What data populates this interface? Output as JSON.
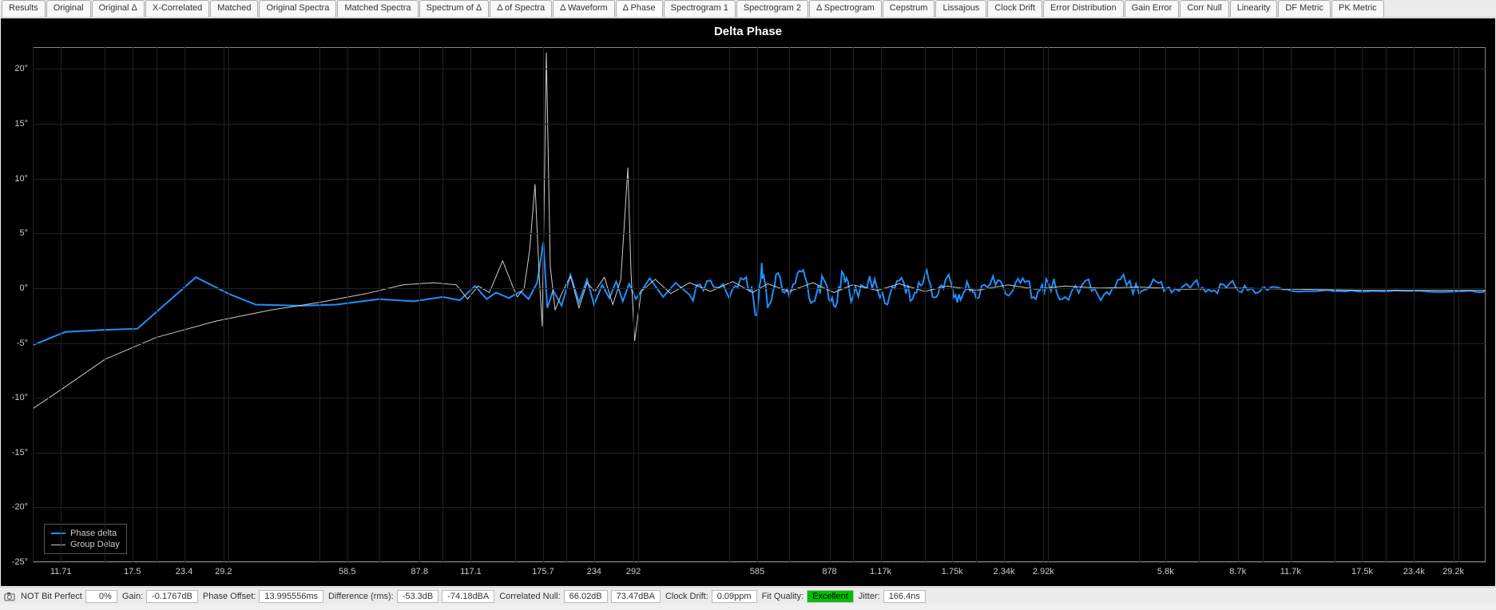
{
  "tabs": [
    "Results",
    "Original",
    "Original Δ",
    "X-Correlated",
    "Matched",
    "Original Spectra",
    "Matched Spectra",
    "Spectrum of Δ",
    "Δ of Spectra",
    "Δ Waveform",
    "Δ Phase",
    "Spectrogram 1",
    "Spectrogram 2",
    "Δ Spectrogram",
    "Cepstrum",
    "Lissajous",
    "Clock Drift",
    "Error Distribution",
    "Gain Error",
    "Corr Null",
    "Linearity",
    "DF Metric",
    "PK Metric"
  ],
  "active_tab_index": 10,
  "chart": {
    "type": "line",
    "title": "Delta Phase",
    "background_color": "#000000",
    "grid_color": "#222222",
    "border_color": "#888888",
    "text_color": "#cccccc",
    "title_color": "#ffffff",
    "title_fontsize": 15,
    "label_fontsize": 11,
    "y_axis": {
      "min": -25,
      "max": 22,
      "unit": "°",
      "ticks": [
        -25,
        -20,
        -15,
        -10,
        -5,
        0,
        5,
        10,
        15,
        20
      ]
    },
    "x_axis": {
      "scale": "log",
      "ticks": [
        11.71,
        17.5,
        23.4,
        29.2,
        58.5,
        87.8,
        117.1,
        175.7,
        234,
        292,
        585,
        878,
        "1.17k",
        "1.75k",
        "2.34k",
        "2.92k",
        "5.8k",
        "8.7k",
        "11.7k",
        "17.5k",
        "23.4k",
        "29.2k"
      ],
      "tick_values": [
        11.71,
        17.5,
        23.4,
        29.2,
        58.5,
        87.8,
        117.1,
        175.7,
        234,
        292,
        585,
        878,
        1170,
        1750,
        2340,
        2920,
        5800,
        8700,
        11700,
        17500,
        23400,
        29200
      ],
      "min": 10,
      "max": 35000
    },
    "series": [
      {
        "name": "Phase delta",
        "color": "#1e90ff",
        "line_width": 2,
        "points": [
          [
            10,
            -5.2
          ],
          [
            12,
            -4.0
          ],
          [
            15,
            -3.8
          ],
          [
            18,
            -3.7
          ],
          [
            25,
            1.0
          ],
          [
            30,
            -0.5
          ],
          [
            35,
            -1.5
          ],
          [
            45,
            -1.6
          ],
          [
            55,
            -1.5
          ],
          [
            70,
            -1.0
          ],
          [
            85,
            -1.2
          ],
          [
            100,
            -0.8
          ],
          [
            110,
            -1.1
          ],
          [
            120,
            0.2
          ],
          [
            128,
            -1.0
          ],
          [
            135,
            -0.4
          ],
          [
            145,
            -0.9
          ],
          [
            155,
            -0.3
          ],
          [
            162,
            -1.0
          ],
          [
            170,
            0.5
          ],
          [
            176,
            4.2
          ],
          [
            180,
            -1.8
          ],
          [
            186,
            -0.2
          ],
          [
            195,
            -1.6
          ],
          [
            205,
            1.2
          ],
          [
            215,
            -1.3
          ],
          [
            225,
            0.8
          ],
          [
            234,
            -1.5
          ],
          [
            245,
            0.3
          ],
          [
            255,
            -0.9
          ],
          [
            265,
            0.6
          ],
          [
            275,
            -1.2
          ],
          [
            285,
            0.4
          ],
          [
            296,
            -1.0
          ],
          [
            320,
            0.9
          ],
          [
            345,
            -0.8
          ],
          [
            370,
            0.5
          ],
          [
            400,
            -0.6
          ],
          [
            450,
            0.7
          ],
          [
            500,
            -0.9
          ],
          [
            550,
            1.0
          ],
          [
            585,
            -2.5
          ],
          [
            600,
            2.3
          ],
          [
            620,
            -1.8
          ],
          [
            650,
            1.2
          ],
          [
            700,
            -0.7
          ],
          [
            750,
            1.5
          ],
          [
            800,
            -1.2
          ],
          [
            850,
            0.8
          ],
          [
            900,
            -1.6
          ],
          [
            950,
            1.3
          ],
          [
            1000,
            -0.9
          ],
          [
            1100,
            1.1
          ],
          [
            1200,
            -1.4
          ],
          [
            1300,
            0.7
          ],
          [
            1400,
            -1.0
          ],
          [
            1500,
            1.2
          ],
          [
            1600,
            -0.8
          ],
          [
            1700,
            1.0
          ],
          [
            1800,
            -1.3
          ],
          [
            1900,
            0.6
          ],
          [
            2000,
            -0.9
          ],
          [
            2200,
            1.1
          ],
          [
            2400,
            -0.7
          ],
          [
            2600,
            0.9
          ],
          [
            2800,
            -1.0
          ],
          [
            3000,
            0.5
          ],
          [
            3300,
            -0.8
          ],
          [
            3700,
            0.7
          ],
          [
            4100,
            -0.6
          ],
          [
            4500,
            0.8
          ],
          [
            5000,
            -0.5
          ],
          [
            5500,
            0.6
          ],
          [
            6000,
            -0.4
          ],
          [
            6800,
            0.5
          ],
          [
            7500,
            -0.3
          ],
          [
            8300,
            0.4
          ],
          [
            9200,
            -0.2
          ],
          [
            10500,
            0.1
          ],
          [
            12000,
            -0.3
          ],
          [
            14000,
            -0.2
          ],
          [
            17000,
            -0.3
          ],
          [
            22000,
            -0.25
          ],
          [
            30000,
            -0.3
          ],
          [
            35000,
            -0.3
          ]
        ]
      },
      {
        "name": "Group Delay",
        "color": "#cccccc",
        "line_width": 1,
        "points": [
          [
            10,
            -11.0
          ],
          [
            12,
            -9.0
          ],
          [
            15,
            -6.5
          ],
          [
            20,
            -4.5
          ],
          [
            28,
            -3.0
          ],
          [
            38,
            -2.0
          ],
          [
            50,
            -1.3
          ],
          [
            65,
            -0.5
          ],
          [
            80,
            0.3
          ],
          [
            95,
            0.5
          ],
          [
            108,
            0.3
          ],
          [
            115,
            -1.0
          ],
          [
            122,
            0.2
          ],
          [
            130,
            -0.4
          ],
          [
            140,
            2.5
          ],
          [
            148,
            0.2
          ],
          [
            152,
            -0.8
          ],
          [
            158,
            0.0
          ],
          [
            163,
            3.5
          ],
          [
            168,
            9.5
          ],
          [
            172,
            1.0
          ],
          [
            175,
            -3.5
          ],
          [
            179,
            21.5
          ],
          [
            183,
            2.0
          ],
          [
            188,
            -2.0
          ],
          [
            195,
            -0.5
          ],
          [
            205,
            1.1
          ],
          [
            215,
            -1.8
          ],
          [
            225,
            0.5
          ],
          [
            235,
            -0.3
          ],
          [
            248,
            1.0
          ],
          [
            260,
            -1.5
          ],
          [
            272,
            0.8
          ],
          [
            283,
            11.0
          ],
          [
            288,
            1.5
          ],
          [
            294,
            -4.8
          ],
          [
            305,
            -0.3
          ],
          [
            330,
            0.8
          ],
          [
            360,
            -0.5
          ],
          [
            400,
            0.5
          ],
          [
            450,
            -0.3
          ],
          [
            510,
            0.6
          ],
          [
            570,
            -0.4
          ],
          [
            620,
            0.4
          ],
          [
            700,
            -0.3
          ],
          [
            800,
            0.5
          ],
          [
            900,
            -0.4
          ],
          [
            1000,
            0.3
          ],
          [
            1150,
            -0.2
          ],
          [
            1300,
            0.4
          ],
          [
            1500,
            -0.3
          ],
          [
            1700,
            0.2
          ],
          [
            2000,
            -0.2
          ],
          [
            2400,
            0.3
          ],
          [
            2800,
            -0.1
          ],
          [
            3300,
            0.2
          ],
          [
            4000,
            0.0
          ],
          [
            5000,
            0.1
          ],
          [
            6500,
            -0.1
          ],
          [
            8500,
            0.0
          ],
          [
            12000,
            -0.1
          ],
          [
            18000,
            -0.2
          ],
          [
            28000,
            -0.2
          ],
          [
            35000,
            -0.2
          ]
        ]
      }
    ],
    "legend": {
      "position": "bottom-left",
      "items": [
        "Phase delta",
        "Group Delay"
      ]
    }
  },
  "status": {
    "bit_perfect_label": "NOT Bit Perfect",
    "bit_perfect_pct": "0%",
    "gain_label": "Gain:",
    "gain_value": "-0.1767dB",
    "phase_offset_label": "Phase Offset:",
    "phase_offset_value": "13.995556ms",
    "difference_label": "Difference (rms):",
    "difference_value1": "-53.3dB",
    "difference_value2": "-74.18dBA",
    "corr_null_label": "Correlated Null:",
    "corr_null_value1": "66.02dB",
    "corr_null_value2": "73.47dBA",
    "clock_drift_label": "Clock Drift:",
    "clock_drift_value": "0.09ppm",
    "fit_quality_label": "Fit Quality:",
    "fit_quality_value": "Excellent",
    "jitter_label": "Jitter:",
    "jitter_value": "166.4ns"
  }
}
